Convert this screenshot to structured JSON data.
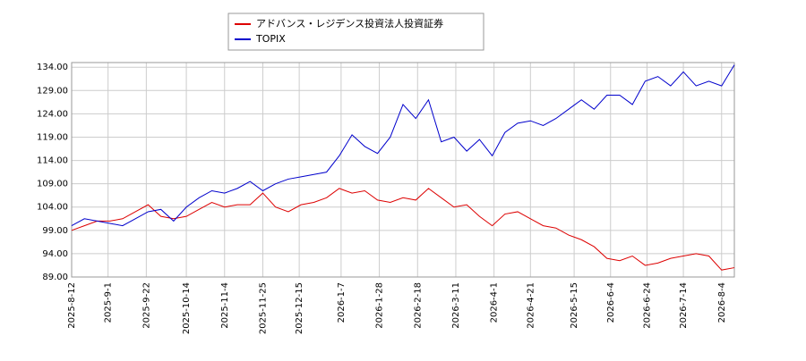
{
  "chart_data": {
    "type": "line",
    "x": [
      "2025-8-12",
      "2025-8-19",
      "2025-8-26",
      "2025-9-2",
      "2025-9-9",
      "2025-9-16",
      "2025-9-23",
      "2025-9-30",
      "2025-10-7",
      "2025-10-14",
      "2025-10-21",
      "2025-10-28",
      "2025-11-4",
      "2025-11-11",
      "2025-11-18",
      "2025-11-25",
      "2025-12-2",
      "2025-12-9",
      "2025-12-16",
      "2025-12-23",
      "2025-12-30",
      "2026-1-6",
      "2026-1-13",
      "2026-1-20",
      "2026-1-27",
      "2026-2-3",
      "2026-2-10",
      "2026-2-17",
      "2026-2-24",
      "2026-3-3",
      "2026-3-10",
      "2026-3-17",
      "2026-3-24",
      "2026-3-31",
      "2026-4-7",
      "2026-4-14",
      "2026-4-21",
      "2026-4-28",
      "2026-5-5",
      "2026-5-12",
      "2026-5-19",
      "2026-5-26",
      "2026-6-2",
      "2026-6-9",
      "2026-6-16",
      "2026-6-23",
      "2026-6-30",
      "2026-7-7",
      "2026-7-14",
      "2026-7-21",
      "2026-7-28",
      "2026-8-4",
      "2026-8-11"
    ],
    "series": [
      {
        "name": "アドバンス・レジデンス投資法人投資証券",
        "color": "#dd0000",
        "values": [
          99,
          100,
          101,
          101,
          101.5,
          103,
          104.5,
          102,
          101.5,
          102,
          103.5,
          105,
          104,
          104.5,
          104.5,
          107,
          104,
          103,
          104.5,
          105,
          106,
          108,
          107,
          107.5,
          105.5,
          105,
          106,
          105.5,
          108,
          106,
          104,
          104.5,
          102,
          100,
          102.5,
          103,
          101.5,
          100,
          99.5,
          98,
          97,
          95.5,
          93,
          92.5,
          93.5,
          91.5,
          92,
          93,
          93.5,
          94,
          93.5,
          90.5,
          91
        ]
      },
      {
        "name": "TOPIX",
        "color": "#0000cc",
        "values": [
          100,
          101.5,
          101,
          100.5,
          100,
          101.5,
          103,
          103.5,
          101,
          104,
          106,
          107.5,
          107,
          108,
          109.5,
          107.5,
          109,
          110,
          110.5,
          111,
          111.5,
          115,
          119.5,
          117,
          115.5,
          119,
          126,
          123,
          127,
          118,
          119,
          116,
          118.5,
          115,
          120,
          122,
          122.5,
          121.5,
          123,
          125,
          127,
          125,
          128,
          128,
          126,
          131,
          132,
          130,
          133,
          130,
          131,
          130,
          134.5
        ]
      }
    ],
    "xlim": [
      "2025-8-12",
      "2026-8-11"
    ],
    "xticks": [
      "2025-8-12",
      "2025-9-1",
      "2025-9-22",
      "2025-10-14",
      "2025-11-4",
      "2025-11-25",
      "2025-12-15",
      "2026-1-7",
      "2026-1-28",
      "2026-2-18",
      "2026-3-11",
      "2026-4-1",
      "2026-4-21",
      "2026-5-15",
      "2026-6-4",
      "2026-6-24",
      "2026-7-14",
      "2026-8-4"
    ],
    "ylim": [
      89,
      135
    ],
    "yticks": [
      {
        "value": 89,
        "label": "89.00"
      },
      {
        "value": 94,
        "label": "94.00"
      },
      {
        "value": 99,
        "label": "99.00"
      },
      {
        "value": 104,
        "label": "104.00"
      },
      {
        "value": 109,
        "label": "109.00"
      },
      {
        "value": 114,
        "label": "114.00"
      },
      {
        "value": 119,
        "label": "119.00"
      },
      {
        "value": 124,
        "label": "124.00"
      },
      {
        "value": 129,
        "label": "129.00"
      },
      {
        "value": 134,
        "label": "134.00"
      }
    ],
    "grid": true
  }
}
